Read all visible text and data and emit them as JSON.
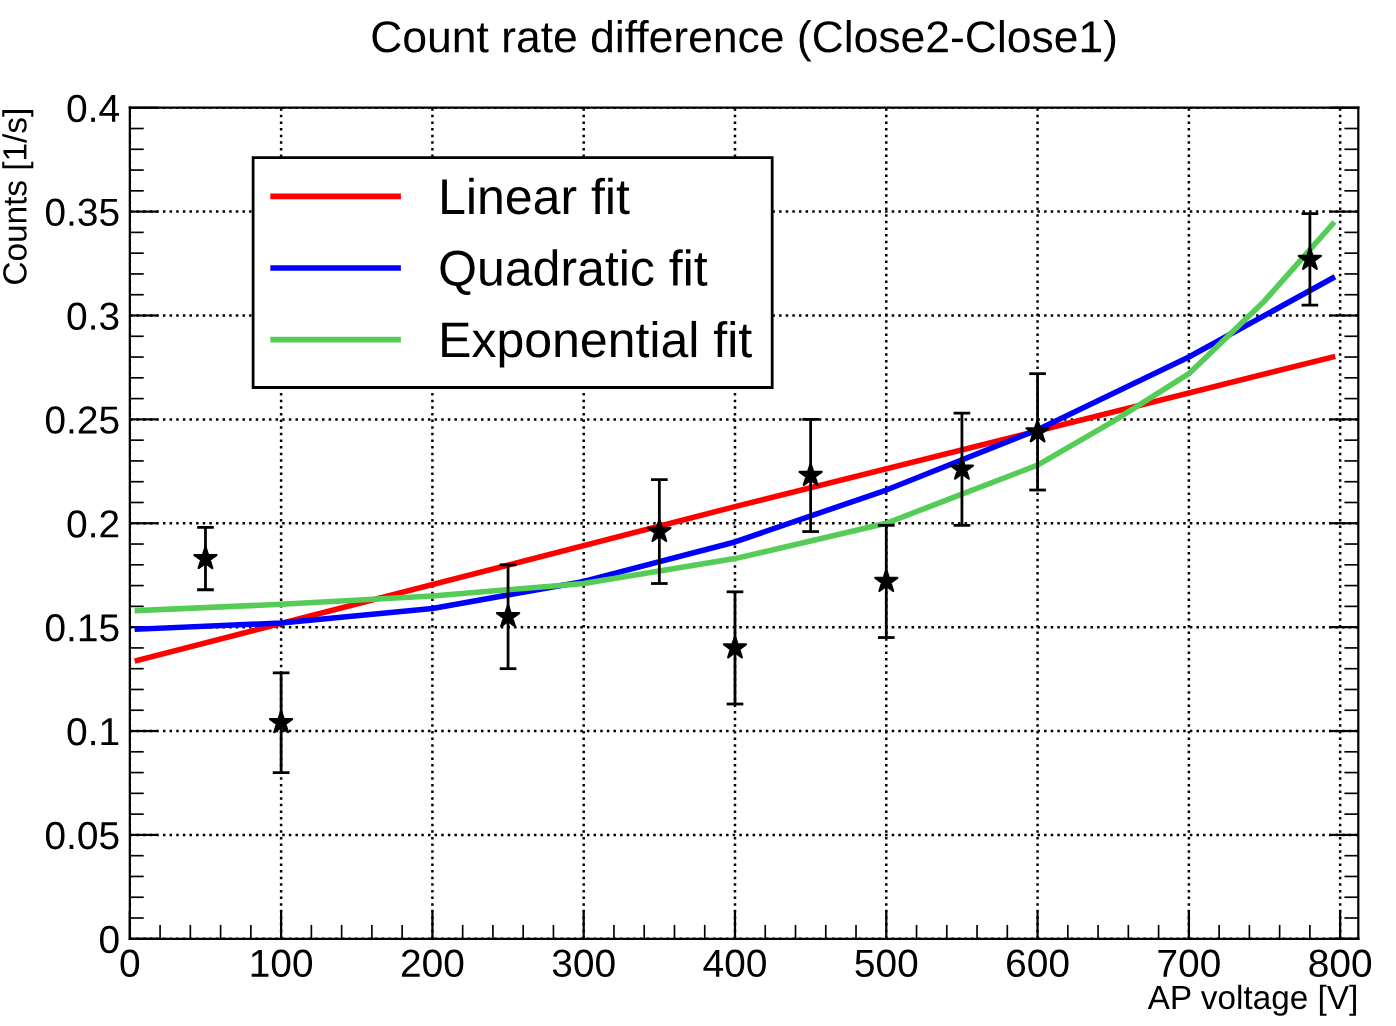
{
  "chart_data": {
    "type": "scatter",
    "title": "Count rate difference (Close2-Close1)",
    "xlabel": "AP voltage [V]",
    "ylabel": "Counts [1/s]",
    "xlim": [
      0,
      812
    ],
    "xticks": [
      0,
      100,
      200,
      300,
      400,
      500,
      600,
      700,
      800
    ],
    "ylim": [
      0,
      0.4
    ],
    "yticks": [
      0,
      0.05,
      0.1,
      0.15,
      0.2,
      0.25,
      0.3,
      0.35,
      0.4
    ],
    "grid": true,
    "legend": "top left",
    "series": [
      {
        "color": "#000000",
        "marker": "star",
        "x": [
          50,
          100,
          250,
          350,
          400,
          450,
          500,
          550,
          600,
          780
        ],
        "values": [
          0.183,
          0.104,
          0.155,
          0.196,
          0.14,
          0.223,
          0.172,
          0.226,
          0.244,
          0.327
        ],
        "errors": [
          0.015,
          0.024,
          0.025,
          0.025,
          0.027,
          0.027,
          0.027,
          0.027,
          0.028,
          0.022
        ]
      },
      {
        "type": "line",
        "name": "Linear fit",
        "color": "#ff0000",
        "x": [
          5,
          400,
          795
        ],
        "values": [
          0.134,
          0.208,
          0.28
        ]
      },
      {
        "type": "line",
        "name": "Quadratic fit",
        "color": "#0000ff",
        "x": [
          5,
          100,
          200,
          300,
          400,
          500,
          600,
          700,
          795
        ],
        "values": [
          0.149,
          0.152,
          0.159,
          0.172,
          0.191,
          0.216,
          0.245,
          0.28,
          0.318
        ]
      },
      {
        "type": "line",
        "name": "Exponential fit",
        "color": "#55cc55",
        "x": [
          5,
          100,
          200,
          300,
          400,
          500,
          550,
          600,
          650,
          700,
          750,
          795
        ],
        "values": [
          0.158,
          0.161,
          0.165,
          0.171,
          0.183,
          0.2,
          0.214,
          0.228,
          0.249,
          0.272,
          0.307,
          0.344
        ]
      }
    ]
  }
}
